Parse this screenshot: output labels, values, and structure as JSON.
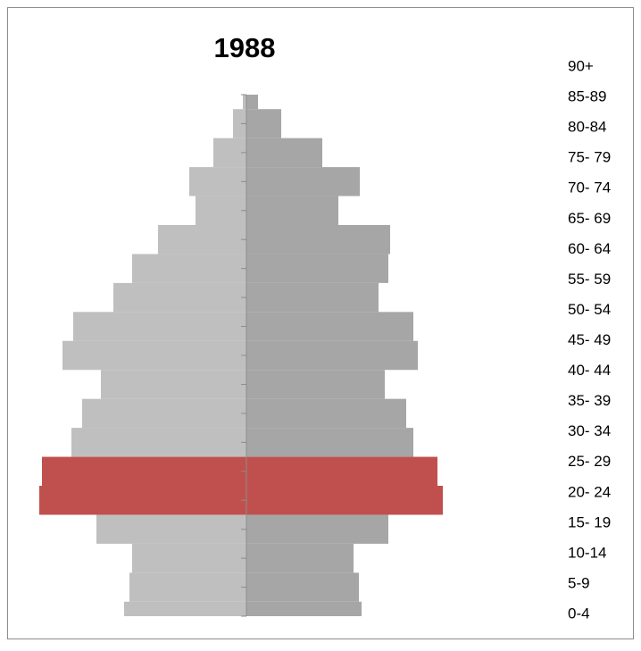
{
  "chart_data": {
    "type": "pyramid",
    "title": "1988",
    "categories": [
      "0-4",
      "5-9",
      "10-14",
      "15- 19",
      "20- 24",
      "25- 29",
      "30- 34",
      "35- 39",
      "40- 44",
      "45- 49",
      "50- 54",
      "55- 59",
      "60- 64",
      "65- 69",
      "70- 74",
      "75- 79",
      "80-84",
      "85-89",
      "90+"
    ],
    "series": [
      {
        "side": "left",
        "color": "#bfbfbf",
        "colors": [
          "#bfbfbf",
          "#bfbfbf",
          "#bfbfbf",
          "#bfbfbf",
          "#c0504d",
          "#c0504d",
          "#bfbfbf",
          "#bfbfbf",
          "#bfbfbf",
          "#bfbfbf",
          "#bfbfbf",
          "#bfbfbf",
          "#bfbfbf",
          "#bfbfbf",
          "#bfbfbf",
          "#bfbfbf",
          "#bfbfbf",
          "#bfbfbf",
          "#bfbfbf"
        ],
        "values": [
          137,
          131,
          128,
          168,
          232,
          229,
          196,
          184,
          163,
          206,
          194,
          149,
          128,
          99,
          57,
          64,
          37,
          15,
          4
        ]
      },
      {
        "side": "right",
        "color": "#a6a6a6",
        "colors": [
          "#a6a6a6",
          "#a6a6a6",
          "#a6a6a6",
          "#a6a6a6",
          "#c0504d",
          "#c0504d",
          "#a6a6a6",
          "#a6a6a6",
          "#a6a6a6",
          "#a6a6a6",
          "#a6a6a6",
          "#a6a6a6",
          "#a6a6a6",
          "#a6a6a6",
          "#a6a6a6",
          "#a6a6a6",
          "#a6a6a6",
          "#a6a6a6",
          "#a6a6a6"
        ],
        "values": [
          129,
          126,
          120,
          159,
          220,
          214,
          187,
          179,
          155,
          192,
          187,
          148,
          159,
          161,
          103,
          127,
          85,
          39,
          13
        ]
      }
    ],
    "xlim": [
      -240,
      240
    ]
  }
}
